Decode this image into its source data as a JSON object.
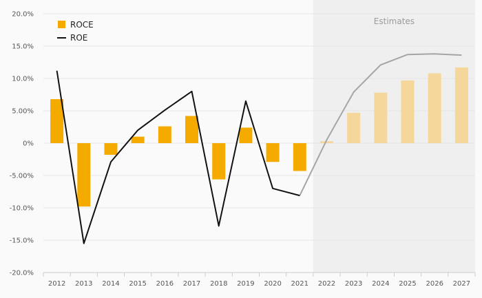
{
  "chart_data": {
    "type": "bar",
    "categories": [
      "2012",
      "2013",
      "2014",
      "2015",
      "2016",
      "2017",
      "2018",
      "2019",
      "2020",
      "2021",
      "2022",
      "2023",
      "2024",
      "2025",
      "2026",
      "2027"
    ],
    "series": [
      {
        "name": "ROCE",
        "kind": "bar",
        "values": [
          6.8,
          -9.8,
          -1.8,
          1.0,
          2.6,
          4.2,
          -5.6,
          2.4,
          -2.9,
          -4.3,
          0.3,
          4.7,
          7.8,
          9.7,
          10.8,
          11.7
        ]
      },
      {
        "name": "ROE",
        "kind": "line",
        "values": [
          11.2,
          -15.5,
          -2.9,
          2.0,
          5.1,
          8.0,
          -12.8,
          6.5,
          -7.0,
          -8.1,
          0.5,
          7.9,
          12.1,
          13.7,
          13.8,
          13.6
        ]
      }
    ],
    "estimates_label": "Estimates",
    "estimates_from": "2022",
    "ylim": [
      -20,
      20
    ],
    "yticks": [
      20,
      15,
      10,
      5,
      0,
      -5,
      -10,
      -15,
      -20
    ],
    "ytick_labels": [
      "20.0%",
      "15.0%",
      "10.0%",
      "5.00%",
      "0%",
      "-5.00%",
      "-10.0%",
      "-15.0%",
      "-20.0%"
    ],
    "legend": {
      "position": "top-left",
      "items": [
        "ROCE",
        "ROE"
      ]
    },
    "colors": {
      "roce": "#f5aa00",
      "roce_estimate": "#f5d79b",
      "roe": "#111111",
      "roe_estimate": "#a5a5a5",
      "estimates_band": "#efefef",
      "grid": "#e6e6e6"
    }
  }
}
